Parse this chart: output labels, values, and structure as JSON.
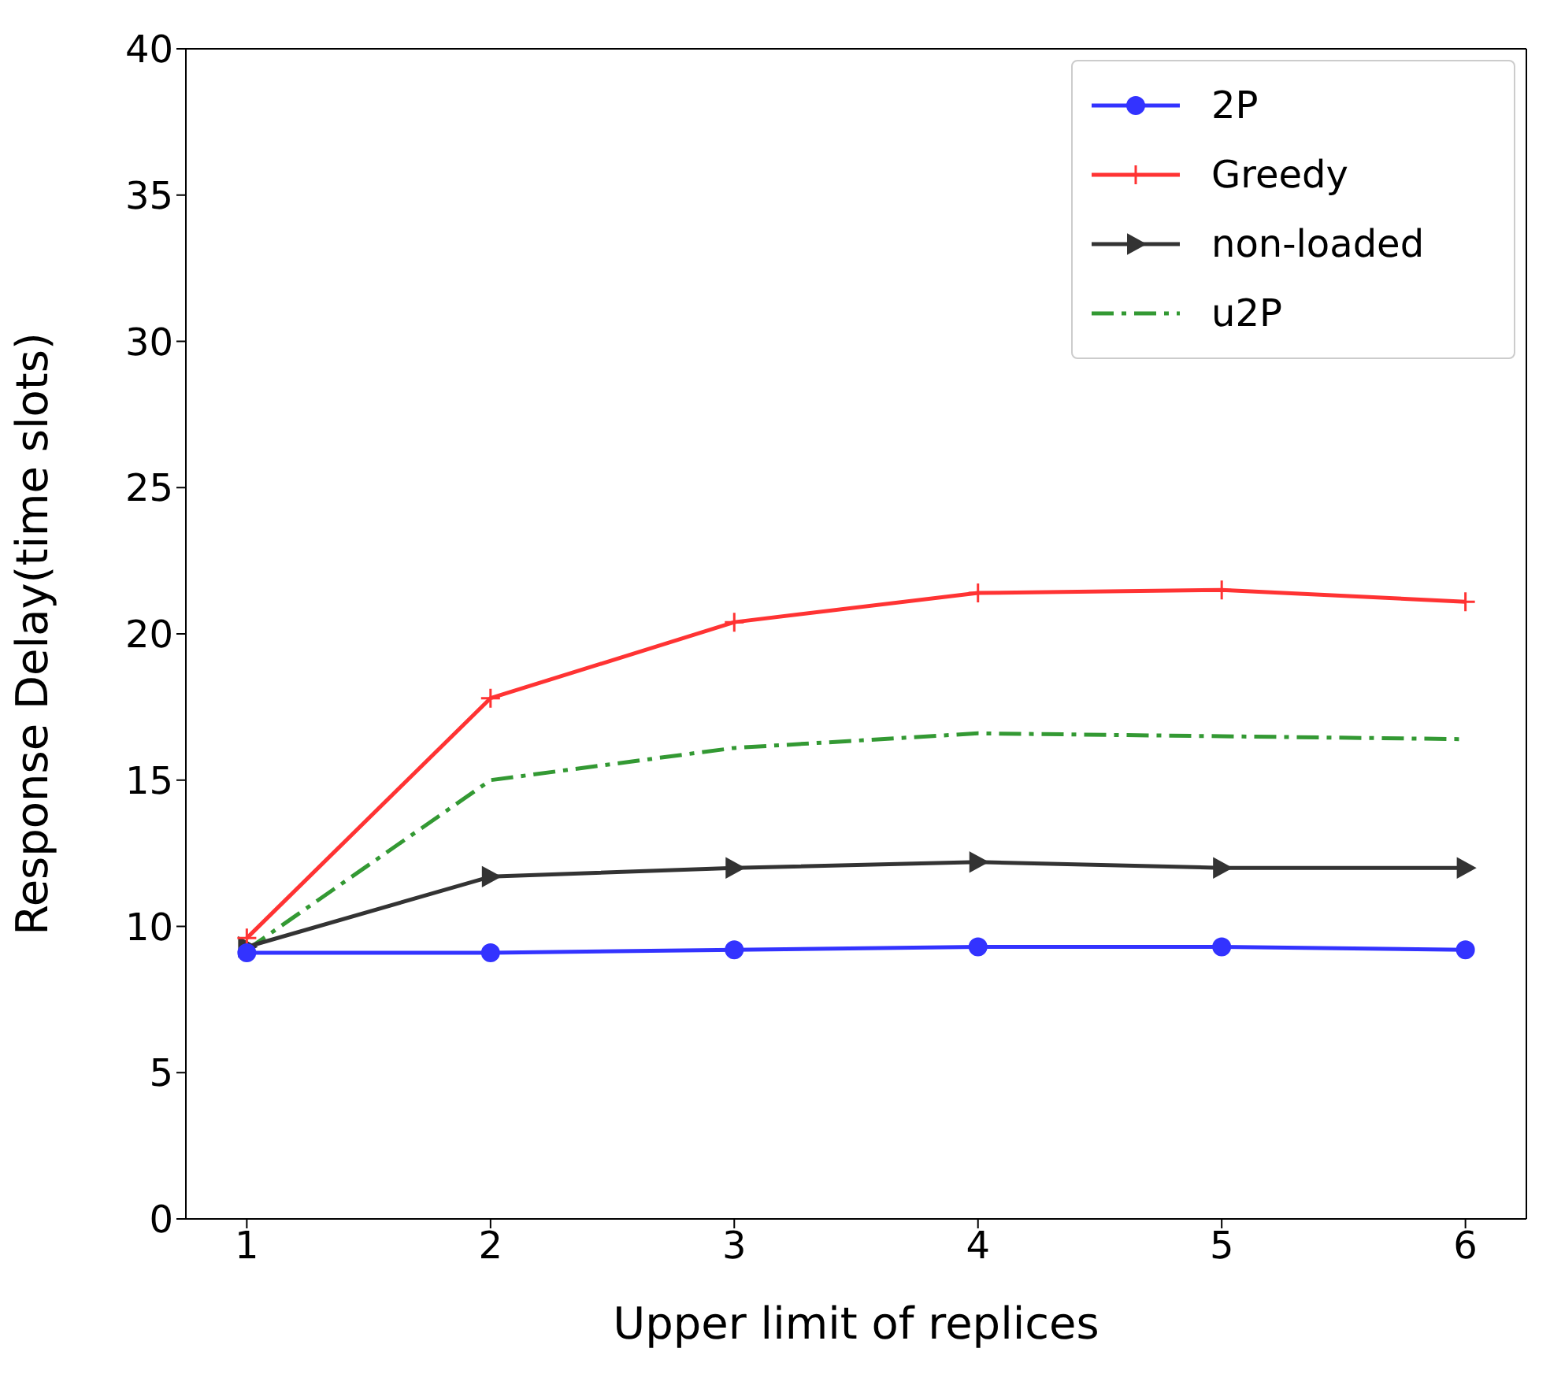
{
  "chart_data": {
    "type": "line",
    "xlabel": "Upper limit of replices",
    "ylabel": "Response Delay(time slots)",
    "x": [
      1,
      2,
      3,
      4,
      5,
      6
    ],
    "xlim": [
      0.75,
      6.25
    ],
    "xticks": [
      1,
      2,
      3,
      4,
      5,
      6
    ],
    "ylim": [
      0,
      40
    ],
    "yticks": [
      0,
      5,
      10,
      15,
      20,
      25,
      30,
      35,
      40
    ],
    "grid": false,
    "legend": "top right",
    "series": [
      {
        "name": "2P",
        "color": "#3333ff",
        "marker": "circle",
        "line_style": "solid",
        "values": [
          9.1,
          9.1,
          9.2,
          9.3,
          9.3,
          9.2
        ]
      },
      {
        "name": "Greedy",
        "color": "#ff3333",
        "marker": "cross",
        "line_style": "solid",
        "values": [
          9.6,
          17.8,
          20.4,
          21.4,
          21.5,
          21.1
        ]
      },
      {
        "name": "non-loaded",
        "color": "#333333",
        "marker": "triangle",
        "line_style": "solid",
        "values": [
          9.3,
          11.7,
          12.0,
          12.2,
          12.0,
          12.0
        ]
      },
      {
        "name": "u2P",
        "color": "#339933",
        "marker": "none",
        "line_style": "dashed",
        "values": [
          9.2,
          15.0,
          16.1,
          16.6,
          16.5,
          16.4
        ]
      }
    ]
  }
}
